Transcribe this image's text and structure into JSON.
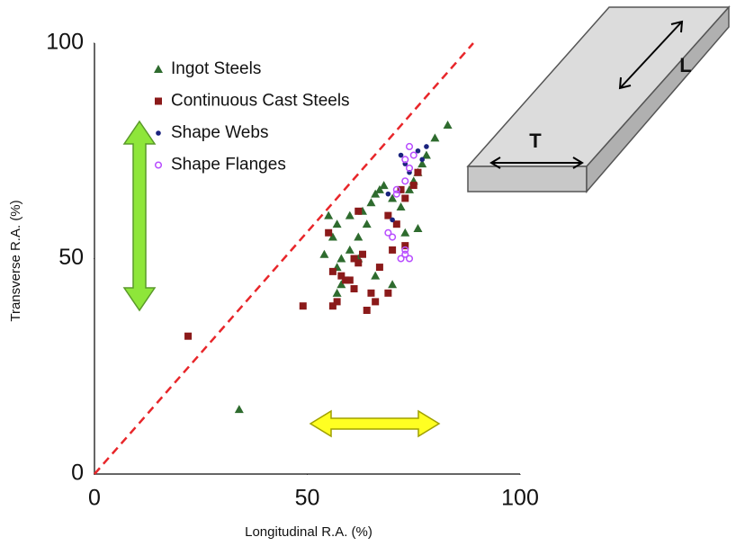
{
  "chart_data": {
    "type": "scatter",
    "x_label": "Longitudinal R.A. (%)",
    "y_label": "Transverse R.A. (%)",
    "xlim": [
      0,
      100
    ],
    "ylim": [
      0,
      100
    ],
    "xticks": [
      0,
      50,
      100
    ],
    "yticks": [
      0,
      50,
      100
    ],
    "diagonal": {
      "color": "#e8262a",
      "x": [
        0,
        89
      ],
      "y": [
        0,
        100
      ]
    },
    "series": [
      {
        "name": "Ingot Steels",
        "color": "#2e6b2e",
        "marker": "triangle",
        "x": [
          34,
          55,
          57,
          56,
          54,
          58,
          57,
          60,
          62,
          60,
          63,
          65,
          66,
          67,
          68,
          70,
          72,
          74,
          75,
          76,
          77,
          78,
          80,
          83,
          66,
          70,
          76,
          58,
          57,
          62,
          64,
          73
        ],
        "values": [
          15,
          60,
          58,
          55,
          51,
          50,
          48,
          52,
          55,
          60,
          61,
          63,
          65,
          66,
          67,
          64,
          62,
          66,
          68,
          70,
          72,
          74,
          78,
          81,
          46,
          44,
          57,
          44,
          42,
          50,
          58,
          56
        ]
      },
      {
        "name": "Continuous Cast Steels",
        "color": "#8b1a1a",
        "marker": "square",
        "x": [
          22,
          49,
          56,
          57,
          55,
          56,
          58,
          59,
          60,
          61,
          62,
          63,
          64,
          62,
          65,
          69,
          69,
          70,
          71,
          73,
          75,
          76,
          73,
          67,
          72,
          66,
          61
        ],
        "values": [
          32,
          39,
          39,
          40,
          56,
          47,
          46,
          45,
          45,
          50,
          49,
          51,
          38,
          61,
          42,
          42,
          60,
          52,
          58,
          64,
          67,
          70,
          53,
          48,
          66,
          40,
          43
        ]
      },
      {
        "name": "Shape Webs",
        "color": "#1a237e",
        "marker": "dot",
        "x": [
          72,
          73,
          74,
          76,
          77,
          78,
          70,
          69
        ],
        "values": [
          74,
          72,
          70,
          75,
          73,
          76,
          59,
          65
        ]
      },
      {
        "name": "Shape Flanges",
        "color": "#b84dff",
        "marker": "circle",
        "x": [
          73,
          74,
          73,
          74,
          75,
          71,
          71,
          69,
          70,
          73,
          73,
          74,
          72
        ],
        "values": [
          73,
          71,
          68,
          76,
          74,
          65,
          66,
          56,
          55,
          51,
          52,
          50,
          50
        ]
      }
    ],
    "specimen_labels": {
      "transverse": "T",
      "longitudinal": "L"
    }
  }
}
